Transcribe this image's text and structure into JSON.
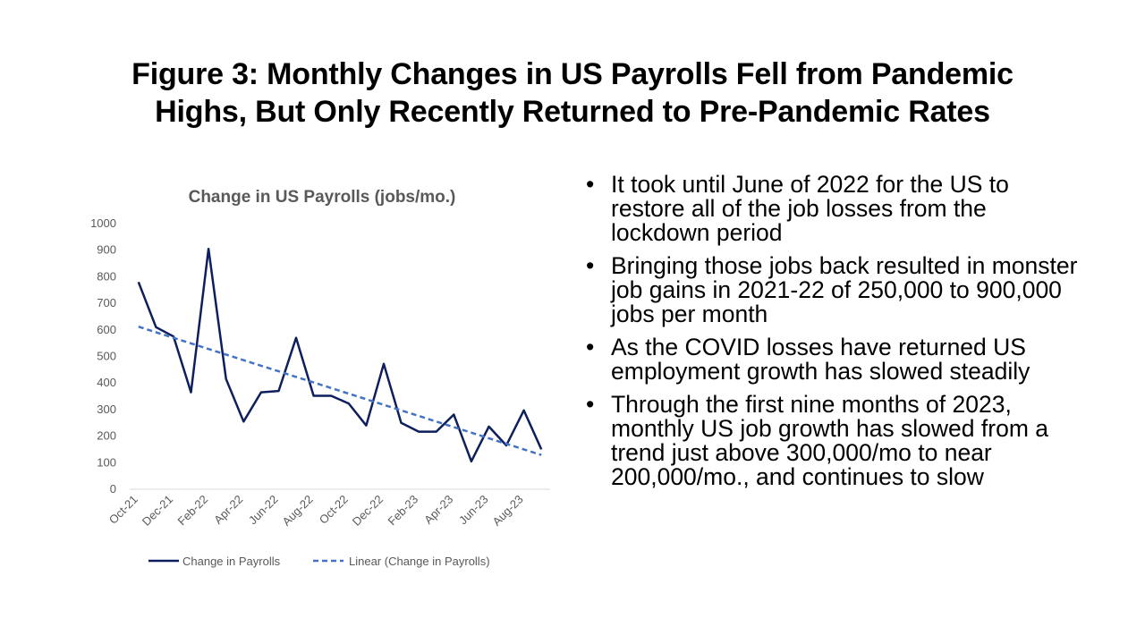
{
  "slide": {
    "title_line1": "Figure 3: Monthly Changes in US Payrolls Fell from Pandemic",
    "title_line2": "Highs, But Only Recently Returned to Pre-Pandemic Rates"
  },
  "bullets": [
    "It took until June of 2022 for the US to restore all of the job losses from the lockdown period",
    "Bringing those jobs back resulted in monster job gains in 2021-22 of 250,000 to 900,000 jobs per month",
    "As the COVID losses have returned US employment growth has slowed steadily",
    "Through the first nine months of 2023, monthly US job growth has slowed from a trend just above 300,000/mo to near 200,000/mo., and continues to slow"
  ],
  "bullet_glyph": "•",
  "colors": {
    "series": "#0d1f5c",
    "trend": "#4472c4",
    "axis": "#d9d9d9",
    "tick_text": "#595959",
    "chart_title": "#595959"
  },
  "chart_data": {
    "type": "line",
    "title": "Change in US Payrolls (jobs/mo.)",
    "xlabel": "",
    "ylabel": "",
    "ylim": [
      0,
      1000
    ],
    "yticks": [
      0,
      100,
      200,
      300,
      400,
      500,
      600,
      700,
      800,
      900,
      1000
    ],
    "grid": false,
    "legend_position": "bottom",
    "x": [
      "Oct-21",
      "Nov-21",
      "Dec-21",
      "Jan-22",
      "Feb-22",
      "Mar-22",
      "Apr-22",
      "May-22",
      "Jun-22",
      "Jul-22",
      "Aug-22",
      "Sep-22",
      "Oct-22",
      "Nov-22",
      "Dec-22",
      "Jan-23",
      "Feb-23",
      "Mar-23",
      "Apr-23",
      "May-23",
      "Jun-23",
      "Jul-23",
      "Aug-23",
      "Sep-23"
    ],
    "xtick_labels": [
      "Oct-21",
      "",
      "Dec-21",
      "",
      "Feb-22",
      "",
      "Apr-22",
      "",
      "Jun-22",
      "",
      "Aug-22",
      "",
      "Oct-22",
      "",
      "Dec-22",
      "",
      "Feb-23",
      "",
      "Apr-23",
      "",
      "Jun-23",
      "",
      "Aug-23",
      ""
    ],
    "series": [
      {
        "name": "Change in Payrolls",
        "style": "solid",
        "values": [
          780,
          610,
          575,
          365,
          905,
          415,
          255,
          365,
          370,
          570,
          352,
          352,
          323,
          240,
          472,
          250,
          217,
          217,
          281,
          105,
          236,
          165,
          297,
          150
        ]
      },
      {
        "name": "Linear (Change in Payrolls)",
        "style": "dashed",
        "values": [
          612,
          591,
          570,
          549,
          528,
          507,
          486,
          465,
          444,
          423,
          402,
          381,
          360,
          339,
          318,
          297,
          276,
          255,
          234,
          213,
          192,
          171,
          150,
          129
        ]
      }
    ]
  }
}
